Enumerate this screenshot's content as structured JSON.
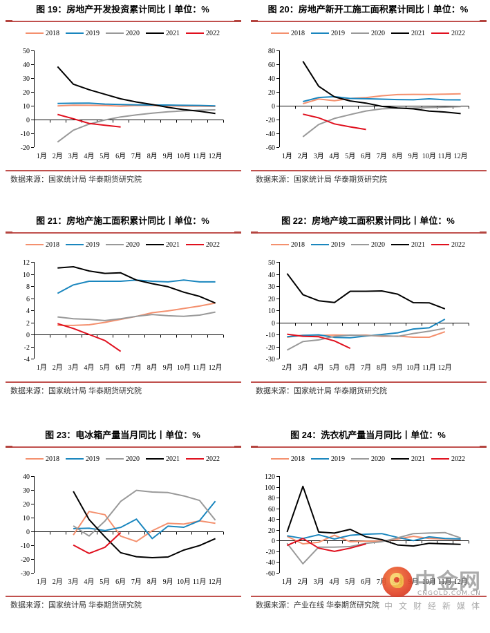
{
  "chart_data": [
    {
      "type": "line",
      "title": "图 19：房地产开发投资累计同比丨单位：%",
      "source": "数据来源：国家统计局 华泰期货研究院",
      "xlabel": "",
      "ylabel": "",
      "categories": [
        "1月",
        "2月",
        "3月",
        "4月",
        "5月",
        "6月",
        "7月",
        "8月",
        "9月",
        "10月",
        "11月",
        "12月"
      ],
      "ylim": [
        -20,
        50
      ],
      "yticks": [
        50,
        40,
        30,
        20,
        10,
        0,
        -10,
        -20
      ],
      "legend": "top",
      "grid": false,
      "series": [
        {
          "name": "2018",
          "color": "#F4906E",
          "values": [
            null,
            9.9,
            10.4,
            10.3,
            10.2,
            9.7,
            10.2,
            10.1,
            9.9,
            9.7,
            9.7,
            9.5
          ]
        },
        {
          "name": "2019",
          "color": "#1A86BE",
          "values": [
            null,
            11.6,
            11.8,
            11.9,
            11.2,
            10.9,
            10.6,
            10.5,
            10.5,
            10.3,
            10.2,
            9.9
          ]
        },
        {
          "name": "2020",
          "color": "#999999",
          "values": [
            null,
            -16.3,
            -7.7,
            -3.3,
            -0.3,
            1.9,
            3.4,
            4.6,
            5.6,
            6.3,
            6.8,
            7.0
          ]
        },
        {
          "name": "2021",
          "color": "#000000",
          "values": [
            null,
            38.3,
            25.6,
            21.6,
            18.3,
            15.0,
            12.7,
            10.9,
            8.8,
            7.2,
            6.0,
            4.4
          ]
        },
        {
          "name": "2022",
          "color": "#E0101E",
          "values": [
            null,
            3.7,
            0.6,
            -2.8,
            -4.1,
            -5.4,
            null,
            null,
            null,
            null,
            null,
            null
          ]
        }
      ]
    },
    {
      "type": "line",
      "title": "图 20：房地产新开工施工面积累计同比丨单位：%",
      "source": "数据来源：国家统计局 华泰期货研究院",
      "xlabel": "",
      "ylabel": "",
      "categories": [
        "1月",
        "2月",
        "3月",
        "4月",
        "5月",
        "6月",
        "7月",
        "8月",
        "9月",
        "10月",
        "11月",
        "12月"
      ],
      "ylim": [
        -60,
        80
      ],
      "yticks": [
        80,
        60,
        40,
        20,
        0,
        -20,
        -40,
        -60
      ],
      "legend": "top",
      "grid": false,
      "series": [
        {
          "name": "2018",
          "color": "#F4906E",
          "values": [
            null,
            2.9,
            9.7,
            7.2,
            10.5,
            11.8,
            14.4,
            16.1,
            16.4,
            16.3,
            16.8,
            17.2
          ]
        },
        {
          "name": "2019",
          "color": "#1A86BE",
          "values": [
            null,
            6.0,
            11.9,
            13.1,
            10.5,
            10.1,
            9.5,
            8.9,
            8.6,
            10.0,
            8.6,
            8.5
          ]
        },
        {
          "name": "2020",
          "color": "#999999",
          "values": [
            null,
            -44.9,
            -27.2,
            -18.4,
            -12.8,
            -7.6,
            -4.5,
            -3.6,
            -3.4,
            -2.6,
            -2.0,
            -1.2
          ]
        },
        {
          "name": "2021",
          "color": "#000000",
          "values": [
            null,
            64.3,
            28.2,
            12.8,
            6.9,
            3.8,
            -0.9,
            -3.2,
            -4.5,
            -7.7,
            -9.1,
            -11.4
          ]
        },
        {
          "name": "2022",
          "color": "#E0101E",
          "values": [
            null,
            -12.2,
            -17.5,
            -26.3,
            -30.6,
            -34.4,
            null,
            null,
            null,
            null,
            null,
            null
          ]
        }
      ]
    },
    {
      "type": "line",
      "title": "图 21：房地产施工面积累计同比丨单位：%",
      "source": "数据来源：国家统计局 华泰期货研究院",
      "xlabel": "",
      "ylabel": "",
      "categories": [
        "1月",
        "2月",
        "3月",
        "4月",
        "5月",
        "6月",
        "7月",
        "8月",
        "9月",
        "10月",
        "11月",
        "12月"
      ],
      "ylim": [
        -4,
        12
      ],
      "yticks": [
        12,
        10,
        8,
        6,
        4,
        2,
        0,
        -2,
        -4
      ],
      "legend": "top",
      "grid": false,
      "series": [
        {
          "name": "2018",
          "color": "#F4906E",
          "values": [
            null,
            1.5,
            1.5,
            1.6,
            2.0,
            2.5,
            3.0,
            3.6,
            3.9,
            4.3,
            4.7,
            5.2
          ]
        },
        {
          "name": "2019",
          "color": "#1A86BE",
          "values": [
            null,
            6.8,
            8.2,
            8.8,
            8.8,
            8.8,
            9.0,
            8.8,
            8.7,
            9.0,
            8.7,
            8.7
          ]
        },
        {
          "name": "2020",
          "color": "#999999",
          "values": [
            null,
            2.9,
            2.6,
            2.5,
            2.3,
            2.6,
            3.0,
            3.3,
            3.1,
            3.0,
            3.2,
            3.7
          ]
        },
        {
          "name": "2021",
          "color": "#000000",
          "values": [
            null,
            11.0,
            11.2,
            10.5,
            10.1,
            10.2,
            9.0,
            8.4,
            7.9,
            7.0,
            6.3,
            5.2
          ]
        },
        {
          "name": "2022",
          "color": "#E0101E",
          "values": [
            null,
            1.8,
            1.0,
            0.0,
            -1.0,
            -2.8,
            null,
            null,
            null,
            null,
            null,
            null
          ]
        }
      ]
    },
    {
      "type": "line",
      "title": "图 22：房地产竣工面积累计同比丨单位：%",
      "source": "数据来源：国家统计局 华泰期货研究院",
      "xlabel": "",
      "ylabel": "",
      "categories": [
        "2月",
        "3月",
        "4月",
        "5月",
        "6月",
        "7月",
        "8月",
        "9月",
        "10月",
        "11月",
        "12月"
      ],
      "ylim": [
        -30,
        50
      ],
      "yticks": [
        50,
        40,
        30,
        20,
        10,
        0,
        -10,
        -20,
        -30
      ],
      "legend": "top",
      "grid": false,
      "series": [
        {
          "name": "2018",
          "color": "#F4906E",
          "values": [
            -12.3,
            -10.6,
            -10.8,
            -10.4,
            -10.6,
            -10.5,
            -11.6,
            -11.4,
            -12.3,
            -12.3,
            -7.8
          ]
        },
        {
          "name": "2019",
          "color": "#1A86BE",
          "values": [
            -11.9,
            -10.8,
            -10.3,
            -12.4,
            -12.7,
            -11.3,
            -10.0,
            -8.6,
            -5.5,
            -4.5,
            2.6
          ]
        },
        {
          "name": "2020",
          "color": "#999999",
          "values": [
            -22.9,
            -15.8,
            -14.5,
            -11.6,
            -10.5,
            -10.9,
            -11.0,
            -11.6,
            -9.2,
            -7.3,
            -4.9
          ]
        },
        {
          "name": "2021",
          "color": "#000000",
          "values": [
            40.4,
            22.9,
            17.9,
            16.4,
            25.7,
            25.7,
            26.0,
            23.4,
            16.3,
            16.2,
            11.2
          ]
        },
        {
          "name": "2022",
          "color": "#E0101E",
          "values": [
            -9.8,
            -11.5,
            -11.9,
            -15.3,
            -21.5,
            null,
            null,
            null,
            null,
            null,
            null
          ]
        }
      ]
    },
    {
      "type": "line",
      "title": "图 23：电冰箱产量当月同比丨单位：%",
      "source": "数据来源：国家统计局 华泰期货研究院",
      "xlabel": "",
      "ylabel": "",
      "categories": [
        "1月",
        "2月",
        "3月",
        "4月",
        "5月",
        "6月",
        "7月",
        "8月",
        "9月",
        "10月",
        "11月",
        "12月"
      ],
      "ylim": [
        -30,
        40
      ],
      "yticks": [
        40,
        30,
        20,
        10,
        0,
        -10,
        -20,
        -30
      ],
      "legend": "top",
      "grid": false,
      "series": [
        {
          "name": "2018",
          "color": "#F4906E",
          "values": [
            null,
            null,
            -2.6,
            14.4,
            12.1,
            -3.4,
            -7.3,
            0.5,
            5.9,
            5.3,
            7.6,
            5.9
          ]
        },
        {
          "name": "2019",
          "color": "#1A86BE",
          "values": [
            null,
            null,
            2.0,
            2.3,
            0.6,
            2.9,
            8.9,
            -5.2,
            3.8,
            3.0,
            7.8,
            21.9
          ]
        },
        {
          "name": "2020",
          "color": "#999999",
          "values": [
            null,
            null,
            4.0,
            -3.3,
            7.5,
            21.7,
            29.7,
            28.5,
            28.1,
            25.7,
            22.4,
            8.1
          ]
        },
        {
          "name": "2021",
          "color": "#000000",
          "values": [
            null,
            null,
            29.0,
            8.6,
            -3.9,
            -15.4,
            -18.3,
            -19.0,
            -18.5,
            -13.5,
            -10.2,
            -5.2
          ]
        },
        {
          "name": "2022",
          "color": "#E0101E",
          "values": [
            null,
            null,
            -9.9,
            -15.9,
            -11.5,
            -0.8,
            null,
            null,
            null,
            null,
            null,
            null
          ]
        }
      ]
    },
    {
      "type": "line",
      "title": "图 24：洗衣机产量当月同比丨单位：%",
      "source": "数据来源：产业在线 华泰期货研究院",
      "xlabel": "",
      "ylabel": "",
      "categories": [
        "1月",
        "2月",
        "3月",
        "4月",
        "5月",
        "6月",
        "7月",
        "8月",
        "9月",
        "10月",
        "11月",
        "12月"
      ],
      "ylim": [
        -60,
        120
      ],
      "yticks": [
        120,
        100,
        80,
        60,
        40,
        20,
        0,
        -20,
        -40,
        -60
      ],
      "legend": "top",
      "grid": false,
      "series": [
        {
          "name": "2018",
          "color": "#F4906E",
          "values": [
            8,
            -6,
            -3,
            10,
            -2,
            -1,
            -1,
            3,
            8,
            4,
            3,
            2
          ]
        },
        {
          "name": "2019",
          "color": "#1A86BE",
          "values": [
            9,
            4,
            11,
            3,
            10,
            12,
            13,
            6,
            0,
            7,
            4,
            3
          ]
        },
        {
          "name": "2020",
          "color": "#999999",
          "values": [
            -5,
            -43,
            -12,
            -12,
            -11,
            -5,
            -2,
            5,
            13,
            14,
            15,
            5
          ]
        },
        {
          "name": "2021",
          "color": "#000000",
          "values": [
            16,
            101,
            16,
            14,
            21,
            7,
            2,
            -8,
            -10,
            -5,
            -6,
            -7
          ]
        },
        {
          "name": "2022",
          "color": "#E0101E",
          "values": [
            -9,
            4,
            -14,
            -20,
            -14,
            -6,
            null,
            null,
            null,
            null,
            null,
            null
          ]
        }
      ]
    }
  ],
  "watermark": {
    "brand": "中金网",
    "domain": "CNGOLD.COM.CN",
    "tagline": "中文财经新媒体"
  }
}
